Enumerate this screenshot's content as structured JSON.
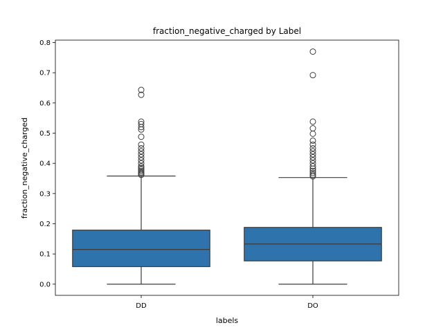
{
  "chart_data": {
    "type": "box",
    "title": "fraction_negative_charged by Label",
    "xlabel": "labels",
    "ylabel": "fraction_negative_charged",
    "ylim": [
      -0.037,
      0.808
    ],
    "yticks": [
      0.0,
      0.1,
      0.2,
      0.3,
      0.4,
      0.5,
      0.6,
      0.7,
      0.8
    ],
    "ytick_labels": [
      "0.0",
      "0.1",
      "0.2",
      "0.3",
      "0.4",
      "0.5",
      "0.6",
      "0.7",
      "0.8"
    ],
    "categories": [
      "DD",
      "DO"
    ],
    "box_color": "#2f73ac",
    "series": [
      {
        "category": "DD",
        "whisker_low": 0.0,
        "q1": 0.058,
        "median": 0.115,
        "q3": 0.179,
        "whisker_high": 0.358,
        "outliers": [
          0.362,
          0.366,
          0.37,
          0.375,
          0.38,
          0.385,
          0.39,
          0.4,
          0.41,
          0.42,
          0.43,
          0.44,
          0.45,
          0.462,
          0.488,
          0.512,
          0.52,
          0.53,
          0.538,
          0.627,
          0.643
        ]
      },
      {
        "category": "DO",
        "whisker_low": 0.0,
        "q1": 0.077,
        "median": 0.133,
        "q3": 0.188,
        "whisker_high": 0.353,
        "outliers": [
          0.357,
          0.362,
          0.368,
          0.375,
          0.382,
          0.39,
          0.4,
          0.41,
          0.42,
          0.43,
          0.44,
          0.45,
          0.462,
          0.475,
          0.498,
          0.516,
          0.538,
          0.692,
          0.77
        ]
      }
    ]
  }
}
